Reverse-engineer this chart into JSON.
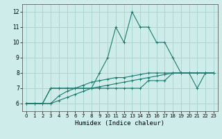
{
  "title": "",
  "xlabel": "Humidex (Indice chaleur)",
  "ylabel": "",
  "xlim": [
    -0.5,
    23.5
  ],
  "ylim": [
    5.5,
    12.5
  ],
  "xticks": [
    0,
    1,
    2,
    3,
    4,
    5,
    6,
    7,
    8,
    9,
    10,
    11,
    12,
    13,
    14,
    15,
    16,
    17,
    18,
    19,
    20,
    21,
    22,
    23
  ],
  "yticks": [
    6,
    7,
    8,
    9,
    10,
    11,
    12
  ],
  "bg_color": "#ceecea",
  "line_color": "#1a7a6e",
  "grid_color": "#a8d8d4",
  "lines": [
    {
      "x": [
        0,
        1,
        2,
        3,
        4,
        5,
        6,
        7,
        8,
        9,
        10,
        11,
        12,
        13,
        14,
        15,
        16,
        17,
        18,
        19,
        20,
        21,
        22,
        23
      ],
      "y": [
        6,
        6,
        6,
        7,
        7,
        7,
        7,
        7,
        7,
        8,
        9,
        11,
        10,
        12,
        11,
        11,
        10,
        10,
        9,
        8,
        8,
        8,
        8,
        8
      ]
    },
    {
      "x": [
        0,
        1,
        2,
        3,
        4,
        5,
        6,
        7,
        8,
        9,
        10,
        11,
        12,
        13,
        14,
        15,
        16,
        17,
        18,
        19,
        20,
        21,
        22,
        23
      ],
      "y": [
        6,
        6,
        6,
        7,
        7,
        7,
        7,
        7,
        7,
        7,
        7,
        7,
        7,
        7,
        7,
        7.5,
        7.5,
        7.5,
        8,
        8,
        8,
        8,
        8,
        8
      ]
    },
    {
      "x": [
        0,
        1,
        2,
        3,
        4,
        5,
        6,
        7,
        8,
        9,
        10,
        11,
        12,
        13,
        14,
        15,
        16,
        17,
        18,
        19,
        20,
        21,
        22,
        23
      ],
      "y": [
        6,
        6,
        6,
        6,
        6.2,
        6.4,
        6.6,
        6.8,
        7.0,
        7.1,
        7.2,
        7.3,
        7.4,
        7.5,
        7.6,
        7.7,
        7.8,
        7.9,
        8.0,
        8.0,
        8.0,
        8.0,
        8.0,
        8.0
      ]
    },
    {
      "x": [
        0,
        1,
        2,
        3,
        4,
        5,
        6,
        7,
        8,
        9,
        10,
        11,
        12,
        13,
        14,
        15,
        16,
        17,
        18,
        19,
        20,
        21,
        22,
        23
      ],
      "y": [
        6,
        6,
        6,
        6,
        6.5,
        6.8,
        7.0,
        7.2,
        7.4,
        7.5,
        7.6,
        7.7,
        7.7,
        7.8,
        7.9,
        8.0,
        8.0,
        8.0,
        8.0,
        8.0,
        8.0,
        7.0,
        8.0,
        8.0
      ]
    }
  ]
}
